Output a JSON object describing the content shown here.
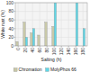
{
  "chart_data": {
    "type": "bar",
    "x": [
      0,
      20,
      40,
      60,
      80,
      100,
      120,
      140,
      160,
      180
    ],
    "series": [
      {
        "name": "Chromation",
        "color": "#c8c8a8",
        "values": [
          10,
          55,
          30,
          25,
          55,
          45,
          null,
          null,
          null,
          null
        ]
      },
      {
        "name": "MolyPhos 66",
        "color": "#60d8e8",
        "values": [
          null,
          20,
          40,
          null,
          null,
          100,
          null,
          null,
          100,
          40
        ]
      }
    ],
    "x_label": "Salting (h)",
    "y_label": "White rust (%)",
    "xlim": [
      -8,
      192
    ],
    "xticks": [
      0,
      20,
      40,
      60,
      80,
      100,
      120,
      140,
      160,
      180
    ],
    "ylim": [
      0,
      100
    ],
    "yticks": [
      0,
      20,
      40,
      60,
      80,
      100
    ],
    "grid": true,
    "legend": "bottom"
  }
}
